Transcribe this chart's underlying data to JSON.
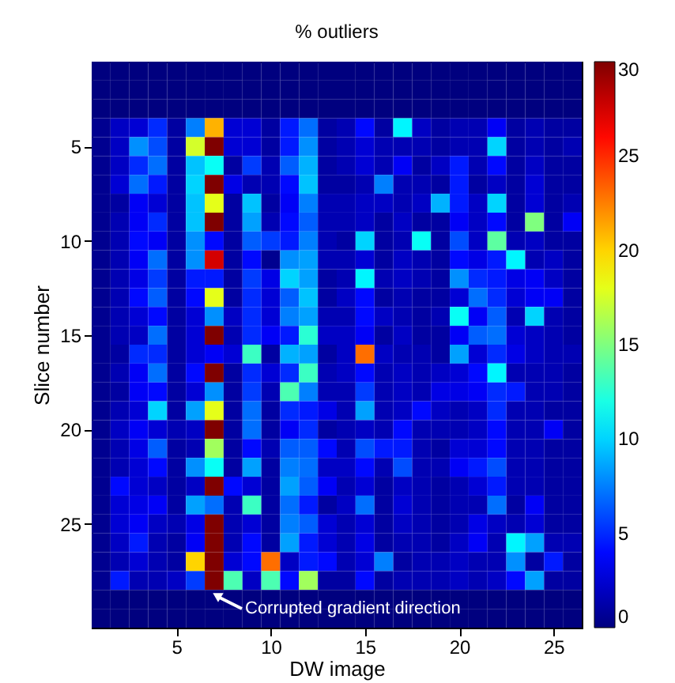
{
  "chart_data": {
    "type": "heatmap",
    "title": "% outliers",
    "xlabel": "DW image",
    "ylabel": "Slice number",
    "xlim": [
      0.5,
      26.5
    ],
    "xticks": [
      5,
      10,
      15,
      20,
      25
    ],
    "ylim": [
      30.5,
      0.5
    ],
    "yticks": [
      5,
      10,
      15,
      20,
      25
    ],
    "clim": [
      0,
      30
    ],
    "cticks": [
      0,
      5,
      10,
      15,
      20,
      25,
      30
    ],
    "grid": false,
    "annotations": [
      "Corrupted gradient direction"
    ],
    "cells": [
      [
        0,
        0,
        0,
        0,
        0,
        0,
        0,
        0,
        0,
        0,
        0,
        0,
        0,
        0,
        0,
        0,
        0,
        0,
        0,
        0,
        0,
        0,
        0,
        0,
        0,
        0
      ],
      [
        0,
        0,
        0,
        0,
        0,
        0,
        0,
        0,
        0,
        0,
        0,
        0,
        0,
        0,
        0,
        0,
        0,
        0,
        0,
        0,
        0,
        0,
        0,
        0,
        0,
        0
      ],
      [
        0,
        0,
        0,
        0,
        0,
        0,
        0,
        0,
        0,
        0,
        0,
        0,
        0,
        0,
        0,
        0,
        0,
        0,
        0,
        0,
        0,
        0,
        0,
        0,
        0,
        0
      ],
      [
        0.5,
        2,
        2.5,
        5,
        1,
        7.5,
        21,
        2.5,
        2.5,
        1,
        4.5,
        7,
        1,
        1.5,
        4,
        1,
        11,
        2,
        1,
        1.5,
        1.5,
        3.5,
        1,
        1.5,
        1,
        1
      ],
      [
        0.5,
        2,
        8,
        6,
        1,
        17.5,
        30,
        2.5,
        2.5,
        1,
        4.5,
        8,
        1,
        1.5,
        2.5,
        1.5,
        1.5,
        1.5,
        1,
        1.5,
        1.5,
        10,
        1,
        1.5,
        1,
        1.5
      ],
      [
        0.5,
        2,
        5,
        7,
        1,
        9.5,
        11.5,
        1,
        5.5,
        1.5,
        6.5,
        9,
        1,
        1.5,
        2.5,
        1.5,
        3.5,
        1,
        2,
        4.5,
        1.5,
        4,
        1,
        2,
        1,
        1
      ],
      [
        0.5,
        2.5,
        7,
        4.5,
        1,
        10,
        30,
        3,
        1.5,
        1.5,
        4,
        9.5,
        1,
        1,
        1.5,
        7.5,
        1.5,
        1.5,
        1,
        4.5,
        1,
        2,
        1,
        2.5,
        1,
        1
      ],
      [
        0.5,
        1,
        3.5,
        2.5,
        1,
        9.5,
        18,
        1,
        9.5,
        1,
        3.5,
        7.5,
        1.5,
        1.5,
        2,
        2,
        1.5,
        2,
        9,
        4.5,
        2,
        10,
        1,
        2.5,
        1,
        1.5
      ],
      [
        0.5,
        1.5,
        3.5,
        5,
        1,
        9.5,
        30,
        1,
        8.5,
        1.5,
        4,
        6.5,
        1.5,
        1.5,
        2,
        1,
        2,
        1,
        1,
        3.5,
        2,
        4,
        1,
        15,
        1,
        3.5
      ],
      [
        0.5,
        1.5,
        4,
        3.5,
        1,
        8,
        4,
        1,
        6.5,
        5.5,
        4.5,
        7.5,
        1.5,
        1,
        10,
        1,
        1.5,
        11.5,
        1,
        6,
        2,
        14,
        1.5,
        2,
        1,
        1
      ],
      [
        0.5,
        1.5,
        3.5,
        7,
        1,
        8,
        27.5,
        1,
        4,
        0.5,
        8,
        8.5,
        1.5,
        1.5,
        2.5,
        1,
        2,
        1.5,
        1,
        4,
        3,
        4.5,
        11,
        1.5,
        2,
        1
      ],
      [
        0.5,
        1.5,
        3,
        5.5,
        1,
        4.5,
        4.5,
        1,
        5.5,
        3,
        10,
        8.5,
        1,
        1.5,
        11,
        1.5,
        2,
        1.5,
        1,
        8,
        5,
        4.5,
        3,
        3.5,
        2,
        1
      ],
      [
        0.5,
        1.5,
        4,
        6.5,
        1,
        4,
        18,
        1,
        5,
        2.5,
        6.5,
        9.5,
        1,
        2,
        4,
        1,
        1.5,
        1,
        1,
        2.5,
        7,
        5,
        2.5,
        3.5,
        3.5,
        1
      ],
      [
        0.5,
        1.5,
        2.5,
        4,
        1,
        2.5,
        8,
        2,
        5,
        2.5,
        7.5,
        8.5,
        1.5,
        1.5,
        4,
        2,
        1.5,
        1,
        1.5,
        11.5,
        3.5,
        6.5,
        1.5,
        10,
        1.5,
        1
      ],
      [
        0.5,
        1.5,
        2,
        7,
        1,
        2.5,
        30,
        1.5,
        5,
        3.5,
        4.5,
        12.5,
        2,
        2,
        3.5,
        1,
        2,
        1,
        1,
        3.5,
        6.5,
        7,
        2.5,
        2,
        1.5,
        1
      ],
      [
        0.5,
        1,
        5,
        5,
        1,
        2.5,
        3.5,
        2.5,
        13,
        1,
        9,
        8.5,
        1,
        2,
        23,
        2,
        1.5,
        1.5,
        1,
        8.5,
        2.5,
        5,
        3,
        2,
        1.5,
        1.5
      ],
      [
        0.5,
        1.5,
        3.5,
        7,
        1,
        4,
        30,
        1,
        5,
        2.5,
        5,
        13,
        1.5,
        2,
        4,
        1.5,
        2,
        1.5,
        2,
        2.5,
        4,
        11,
        1.5,
        1.5,
        1.5,
        1
      ],
      [
        0.5,
        1,
        3.5,
        4,
        1,
        2.5,
        8,
        1,
        5.5,
        1.5,
        13.5,
        7.5,
        1.5,
        1.5,
        5.5,
        1.5,
        2,
        1.5,
        3,
        3,
        3.5,
        5,
        4.5,
        1.5,
        1.5,
        1
      ],
      [
        0.5,
        1.5,
        2.5,
        10,
        1,
        8.5,
        18,
        1,
        7,
        1,
        5,
        4.5,
        3,
        1.5,
        8.5,
        1.5,
        2,
        4,
        2,
        1.5,
        2,
        5,
        1.5,
        1.5,
        1,
        1
      ],
      [
        0.5,
        2,
        3.5,
        2.5,
        1.5,
        2,
        30,
        1,
        7,
        1,
        3.5,
        5,
        1,
        1.5,
        2,
        1.5,
        4,
        1.5,
        1.5,
        1.5,
        2,
        4,
        1.5,
        1.5,
        3.5,
        1
      ],
      [
        0.5,
        1.5,
        3,
        6.5,
        1,
        1.5,
        16,
        1,
        4,
        1.5,
        6.5,
        6.5,
        4,
        1.5,
        6,
        4.5,
        4.5,
        1.5,
        1,
        2.5,
        2.5,
        4,
        1.5,
        1.5,
        1,
        1
      ],
      [
        0.5,
        1.5,
        2.5,
        4,
        1,
        8,
        11.5,
        1,
        8.5,
        1,
        7.5,
        7,
        2,
        2,
        4,
        1.5,
        6,
        1.5,
        1.5,
        3.5,
        4.5,
        6,
        1.5,
        1.5,
        1,
        1
      ],
      [
        0.5,
        4,
        2.5,
        2,
        1,
        2,
        30,
        4,
        2.5,
        1,
        8.5,
        6.5,
        3.5,
        1.5,
        2.5,
        1,
        2,
        1.5,
        1,
        1.5,
        2.5,
        4.5,
        1.5,
        1.5,
        1,
        1
      ],
      [
        0.5,
        2.5,
        3,
        3.5,
        1,
        8.5,
        7,
        1.5,
        13,
        1,
        7,
        4.5,
        1,
        2,
        7,
        1,
        2.5,
        1.5,
        1,
        1.5,
        1.5,
        7,
        1,
        3.5,
        1,
        1
      ],
      [
        0.5,
        2.5,
        3.5,
        2,
        1.5,
        3,
        30,
        1.5,
        2.5,
        1,
        7.5,
        6.5,
        2.5,
        1.5,
        2.5,
        1,
        2,
        1.5,
        1,
        1.5,
        3,
        2,
        1.5,
        2.5,
        1,
        1
      ],
      [
        0.5,
        2,
        4.5,
        1.5,
        1,
        3.5,
        30,
        1.5,
        4,
        1,
        8.5,
        4.5,
        2.5,
        1.5,
        3,
        1,
        1.5,
        1.5,
        1,
        2,
        3.5,
        1.5,
        11,
        8.5,
        1.5,
        1.5
      ],
      [
        0.5,
        1.5,
        2.5,
        1.5,
        1,
        20,
        30,
        2.5,
        4,
        23,
        2,
        4.5,
        4,
        1.5,
        2.5,
        7.5,
        1,
        1.5,
        1.5,
        2,
        1.5,
        1.5,
        8,
        1,
        4.5,
        1
      ],
      [
        0.5,
        4.5,
        1.5,
        1.5,
        2,
        5.5,
        30,
        13.5,
        2,
        13.5,
        4,
        16,
        1,
        1,
        4,
        1,
        1.5,
        1.5,
        1.5,
        2,
        1.5,
        2,
        4,
        8.5,
        1,
        1
      ],
      [
        0,
        0,
        0,
        0,
        0,
        0,
        0,
        0,
        0,
        0,
        0,
        0,
        0,
        0,
        0,
        0,
        0,
        0,
        0,
        0,
        0,
        0,
        0,
        0,
        0,
        0
      ],
      [
        0,
        0,
        0,
        0,
        0,
        0,
        0,
        0,
        0,
        0,
        0,
        0,
        0,
        0,
        0,
        0,
        0,
        0,
        0,
        0,
        0,
        0,
        0,
        0,
        0,
        0
      ]
    ]
  }
}
